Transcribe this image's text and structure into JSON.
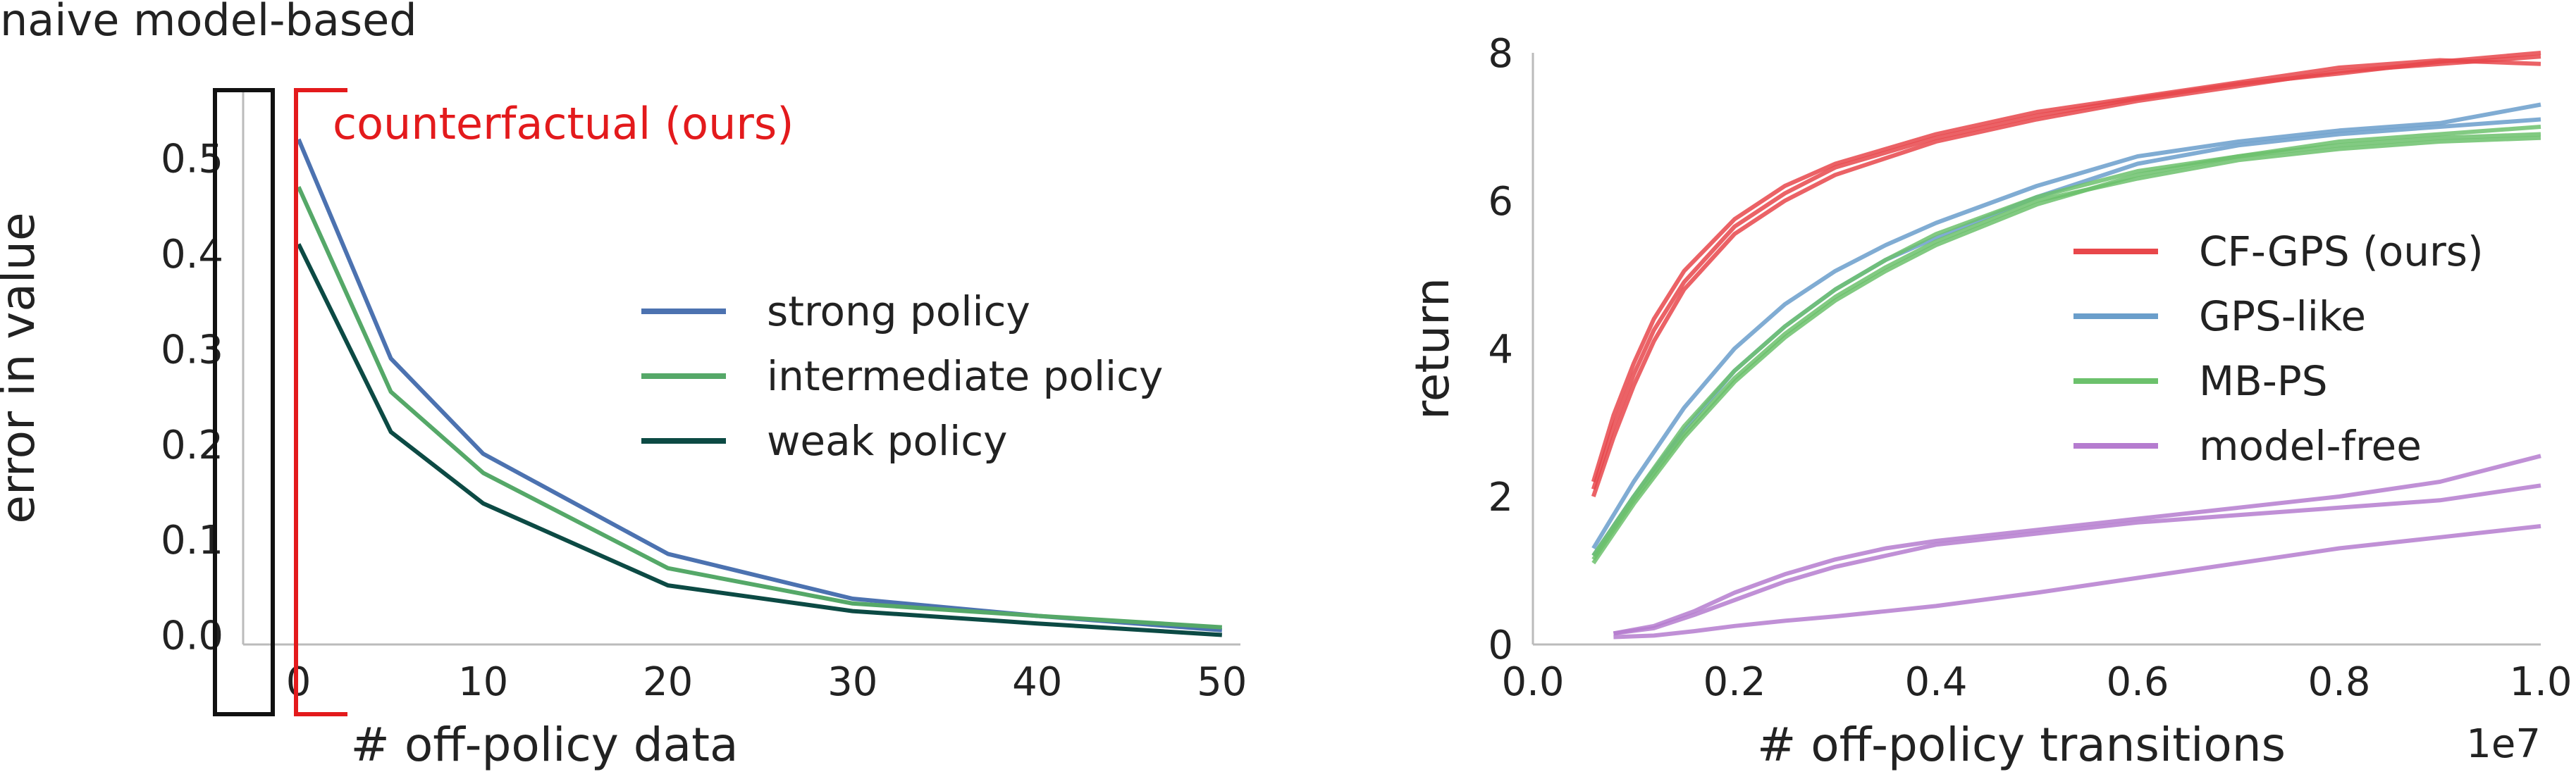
{
  "colors": {
    "text": "#222222",
    "axis": "#bbbbbb",
    "highlight_box": "#111111",
    "highlight_bracket": "#e31a1c"
  },
  "chart_data": [
    {
      "type": "line",
      "panel": "left",
      "title": "",
      "xlabel": "# off-policy data",
      "ylabel": "error in value",
      "xlim": [
        -3,
        51
      ],
      "ylim": [
        -0.01,
        0.57
      ],
      "xticks": [
        0,
        10,
        20,
        30,
        40,
        50
      ],
      "yticks": [
        0.0,
        0.1,
        0.2,
        0.3,
        0.4,
        0.5
      ],
      "xtick_labels": [
        "0",
        "10",
        "20",
        "30",
        "40",
        "50"
      ],
      "ytick_labels": [
        "0.0",
        "0.1",
        "0.2",
        "0.3",
        "0.4",
        "0.5"
      ],
      "grid": false,
      "legend_position": "center-right",
      "annotations": {
        "box_label": "naive model-based",
        "bracket_label": "counterfactual (ours)"
      },
      "series": [
        {
          "name": "strong policy",
          "color": "#4c72b0",
          "x": [
            0,
            5,
            10,
            20,
            30,
            40,
            50
          ],
          "y": [
            0.52,
            0.29,
            0.19,
            0.085,
            0.038,
            0.02,
            0.005
          ]
        },
        {
          "name": "intermediate policy",
          "color": "#55a868",
          "x": [
            0,
            5,
            10,
            20,
            30,
            40,
            50
          ],
          "y": [
            0.47,
            0.255,
            0.17,
            0.07,
            0.033,
            0.02,
            0.008
          ]
        },
        {
          "name": "weak policy",
          "color": "#0c4a44",
          "x": [
            0,
            5,
            10,
            20,
            30,
            40,
            50
          ],
          "y": [
            0.41,
            0.213,
            0.138,
            0.052,
            0.025,
            0.012,
            0.0
          ]
        }
      ]
    },
    {
      "type": "line",
      "panel": "right",
      "title": "",
      "xlabel": "# off-policy transitions",
      "ylabel": "return",
      "x_scale_label": "1e7",
      "xlim": [
        0.0,
        1.0
      ],
      "ylim": [
        0,
        8
      ],
      "xticks": [
        0.0,
        0.2,
        0.4,
        0.6,
        0.8,
        1.0
      ],
      "yticks": [
        0,
        2,
        4,
        6,
        8
      ],
      "xtick_labels": [
        "0.0",
        "0.2",
        "0.4",
        "0.6",
        "0.8",
        "1.0"
      ],
      "ytick_labels": [
        "0",
        "2",
        "4",
        "6",
        "8"
      ],
      "grid": false,
      "legend_position": "center-right",
      "series": [
        {
          "name": "CF-GPS (ours)",
          "color": "#e8474b",
          "runs": [
            {
              "x": [
                0.06,
                0.08,
                0.1,
                0.12,
                0.15,
                0.2,
                0.25,
                0.3,
                0.4,
                0.5,
                0.6,
                0.7,
                0.8,
                0.9,
                1.0
              ],
              "y": [
                2.0,
                2.8,
                3.5,
                4.1,
                4.8,
                5.55,
                6.0,
                6.35,
                6.8,
                7.1,
                7.35,
                7.55,
                7.75,
                7.85,
                7.95
              ]
            },
            {
              "x": [
                0.06,
                0.08,
                0.1,
                0.12,
                0.15,
                0.2,
                0.25,
                0.3,
                0.4,
                0.5,
                0.6,
                0.7,
                0.8,
                0.9,
                1.0
              ],
              "y": [
                2.2,
                3.1,
                3.8,
                4.4,
                5.05,
                5.75,
                6.2,
                6.5,
                6.9,
                7.2,
                7.4,
                7.6,
                7.8,
                7.9,
                7.85
              ]
            },
            {
              "x": [
                0.06,
                0.08,
                0.1,
                0.12,
                0.15,
                0.2,
                0.25,
                0.3,
                0.4,
                0.5,
                0.6,
                0.7,
                0.8,
                0.9,
                1.0
              ],
              "y": [
                2.1,
                2.95,
                3.65,
                4.25,
                4.9,
                5.65,
                6.1,
                6.45,
                6.85,
                7.15,
                7.38,
                7.58,
                7.72,
                7.88,
                8.0
              ]
            }
          ]
        },
        {
          "name": "GPS-like",
          "color": "#6a9ecb",
          "runs": [
            {
              "x": [
                0.06,
                0.1,
                0.15,
                0.2,
                0.25,
                0.3,
                0.35,
                0.4,
                0.5,
                0.6,
                0.7,
                0.8,
                0.9,
                1.0
              ],
              "y": [
                1.3,
                2.2,
                3.2,
                4.0,
                4.6,
                5.05,
                5.4,
                5.7,
                6.2,
                6.6,
                6.8,
                6.95,
                7.05,
                7.3
              ]
            },
            {
              "x": [
                0.06,
                0.1,
                0.15,
                0.2,
                0.25,
                0.3,
                0.35,
                0.4,
                0.5,
                0.6,
                0.7,
                0.8,
                0.9,
                1.0
              ],
              "y": [
                1.2,
                2.0,
                2.9,
                3.7,
                4.3,
                4.8,
                5.2,
                5.5,
                6.05,
                6.5,
                6.75,
                6.9,
                7.0,
                7.1
              ]
            }
          ]
        },
        {
          "name": "MB-PS",
          "color": "#6cc16c",
          "runs": [
            {
              "x": [
                0.06,
                0.1,
                0.15,
                0.2,
                0.25,
                0.3,
                0.35,
                0.4,
                0.5,
                0.6,
                0.7,
                0.8,
                0.9,
                1.0
              ],
              "y": [
                1.1,
                1.9,
                2.8,
                3.55,
                4.15,
                4.65,
                5.05,
                5.4,
                5.95,
                6.35,
                6.6,
                6.8,
                6.9,
                7.0
              ]
            },
            {
              "x": [
                0.06,
                0.1,
                0.15,
                0.2,
                0.25,
                0.3,
                0.35,
                0.4,
                0.5,
                0.6,
                0.7,
                0.8,
                0.9,
                1.0
              ],
              "y": [
                1.2,
                2.0,
                2.95,
                3.7,
                4.3,
                4.8,
                5.2,
                5.55,
                6.05,
                6.4,
                6.6,
                6.75,
                6.85,
                6.9
              ]
            },
            {
              "x": [
                0.06,
                0.1,
                0.15,
                0.2,
                0.25,
                0.3,
                0.35,
                0.4,
                0.5,
                0.6,
                0.7,
                0.8,
                0.9,
                1.0
              ],
              "y": [
                1.15,
                1.95,
                2.85,
                3.6,
                4.2,
                4.7,
                5.1,
                5.45,
                6.0,
                6.3,
                6.55,
                6.7,
                6.8,
                6.85
              ]
            }
          ]
        },
        {
          "name": "model-free",
          "color": "#b57ccf",
          "runs": [
            {
              "x": [
                0.08,
                0.12,
                0.16,
                0.2,
                0.25,
                0.3,
                0.35,
                0.4,
                0.5,
                0.6,
                0.7,
                0.8,
                0.9,
                1.0
              ],
              "y": [
                0.15,
                0.25,
                0.45,
                0.7,
                0.95,
                1.15,
                1.3,
                1.4,
                1.55,
                1.7,
                1.85,
                2.0,
                2.2,
                2.55
              ]
            },
            {
              "x": [
                0.08,
                0.12,
                0.16,
                0.2,
                0.25,
                0.3,
                0.35,
                0.4,
                0.5,
                0.6,
                0.7,
                0.8,
                0.9,
                1.0
              ],
              "y": [
                0.15,
                0.22,
                0.4,
                0.6,
                0.85,
                1.05,
                1.2,
                1.35,
                1.5,
                1.65,
                1.75,
                1.85,
                1.95,
                2.15
              ]
            },
            {
              "x": [
                0.08,
                0.12,
                0.16,
                0.2,
                0.25,
                0.3,
                0.35,
                0.4,
                0.5,
                0.6,
                0.7,
                0.8,
                0.9,
                1.0
              ],
              "y": [
                0.1,
                0.12,
                0.18,
                0.25,
                0.32,
                0.38,
                0.45,
                0.52,
                0.7,
                0.9,
                1.1,
                1.3,
                1.45,
                1.6
              ]
            }
          ]
        }
      ]
    }
  ]
}
